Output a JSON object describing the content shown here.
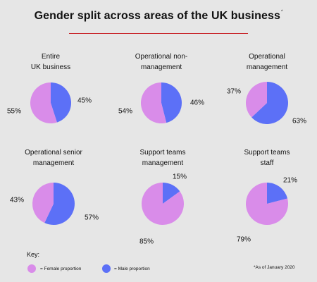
{
  "title": "Gender split across areas of the UK business",
  "title_marker": "*",
  "colors": {
    "female": "#d98ce9",
    "male": "#5c70f7"
  },
  "chart_data": {
    "type": "pie",
    "title": "Gender split across areas of the UK business",
    "series_names": [
      "Female proportion",
      "Male proportion"
    ],
    "charts": [
      {
        "id": "entire",
        "label_lines": [
          "Entire",
          "UK business"
        ],
        "female": 55,
        "male": 45,
        "female_label": "55%",
        "male_label": "45%"
      },
      {
        "id": "opnonmgmt",
        "label_lines": [
          "Operational non-",
          "management"
        ],
        "female": 54,
        "male": 46,
        "female_label": "54%",
        "male_label": "46%"
      },
      {
        "id": "opmgmt",
        "label_lines": [
          "Operational",
          "management"
        ],
        "female": 37,
        "male": 63,
        "female_label": "37%",
        "male_label": "63%"
      },
      {
        "id": "opsenior",
        "label_lines": [
          "Operational senior",
          "management"
        ],
        "female": 43,
        "male": 57,
        "female_label": "43%",
        "male_label": "57%"
      },
      {
        "id": "supmgmt",
        "label_lines": [
          "Support teams",
          "management"
        ],
        "female": 85,
        "male": 15,
        "female_label": "85%",
        "male_label": "15%"
      },
      {
        "id": "supstaff",
        "label_lines": [
          "Support teams",
          "staff"
        ],
        "female": 79,
        "male": 21,
        "female_label": "79%",
        "male_label": "21%"
      }
    ]
  },
  "key": {
    "title": "Key:",
    "female_label": "= Female proportion",
    "male_label": "= Male proportion"
  },
  "footnote": "*As of January 2020"
}
